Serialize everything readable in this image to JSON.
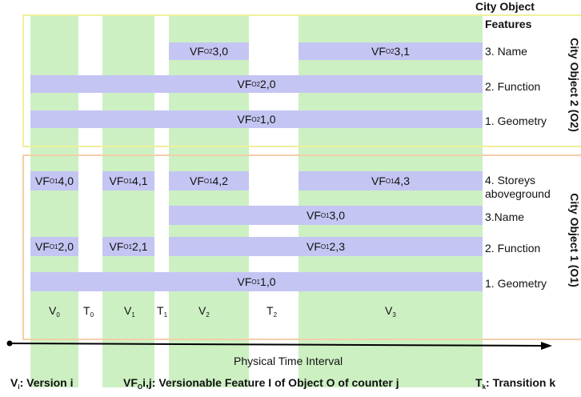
{
  "header": {
    "title_line1": "City Object",
    "title_line2": "Features"
  },
  "groups": {
    "o2": "City Object 2 (O2)",
    "o1": "City Object 1 (O1)"
  },
  "features_o2": [
    "3. Name",
    "2. Function",
    "1. Geometry"
  ],
  "features_o1": [
    "4. Storeys",
    "aboveground",
    "3.Name",
    "2. Function",
    "1. Geometry"
  ],
  "bars": {
    "o2_3_0": {
      "pre": "VF",
      "sub": "O2",
      "post": "3,0"
    },
    "o2_3_1": {
      "pre": "VF",
      "sub": "O2",
      "post": "3,1"
    },
    "o2_2_0": {
      "pre": "VF",
      "sub": "O2",
      "post": "2,0"
    },
    "o2_1_0": {
      "pre": "VF",
      "sub": "O2",
      "post": "1,0"
    },
    "o1_4_0": {
      "pre": "VF",
      "sub": "O1",
      "post": "4,0"
    },
    "o1_4_1": {
      "pre": "VF",
      "sub": "O1",
      "post": "4,1"
    },
    "o1_4_2": {
      "pre": "VF",
      "sub": "O1",
      "post": "4,2"
    },
    "o1_4_3": {
      "pre": "VF",
      "sub": "O1",
      "post": "4,3"
    },
    "o1_3_0": {
      "pre": "VF",
      "sub": "O1",
      "post": "3,0"
    },
    "o1_2_0": {
      "pre": "VF",
      "sub": "O1",
      "post": "2,0"
    },
    "o1_2_1": {
      "pre": "VF",
      "sub": "O1",
      "post": "2,1"
    },
    "o1_2_3": {
      "pre": "VF",
      "sub": "O1",
      "post": "2,3"
    },
    "o1_1_0": {
      "pre": "VF",
      "sub": "O1",
      "post": "1,0"
    }
  },
  "timeline": {
    "v0": {
      "pre": "V",
      "sub": "0"
    },
    "t0": {
      "pre": "T",
      "sub": "0"
    },
    "v1": {
      "pre": "V",
      "sub": "1"
    },
    "t1": {
      "pre": "T",
      "sub": "1"
    },
    "v2": {
      "pre": "V",
      "sub": "2"
    },
    "t2": {
      "pre": "T",
      "sub": "2"
    },
    "v3": {
      "pre": "V",
      "sub": "3"
    }
  },
  "axis_label": "Physical Time Interval",
  "legend": {
    "vi": {
      "pre": "V",
      "sub": "i",
      "post": ": Version i"
    },
    "vf": {
      "pre": "VF",
      "sub": "O",
      "post": "i,j: Versionable Feature I of Object O of counter j"
    },
    "tk": {
      "pre": "T",
      "sub": "k",
      "post": ": Transition k"
    }
  },
  "colors": {
    "version_bg": "#cdf0c3",
    "feature_bar": "#c5c5f3",
    "o2_frame": "#f0f09a",
    "o1_frame": "#f2cfa8"
  }
}
